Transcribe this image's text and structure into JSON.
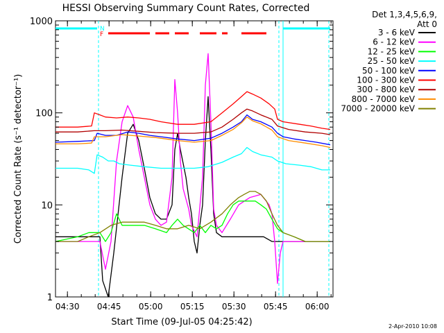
{
  "chart_data": {
    "type": "line",
    "title": "HESSI Observing Summary Count Rates, Corrected",
    "xlabel": "Start Time (09-Jul-05 04:25:42)",
    "ylabel": "Corrected Count Rate (s⁻¹ detector⁻¹)",
    "yscale": "log",
    "ylim": [
      1,
      1000
    ],
    "xlim_minutes": [
      0,
      100
    ],
    "x_ticks": [
      {
        "label": "04:30",
        "minute": 4.3
      },
      {
        "label": "04:45",
        "minute": 19.3
      },
      {
        "label": "05:00",
        "minute": 34.3
      },
      {
        "label": "05:15",
        "minute": 49.3
      },
      {
        "label": "05:30",
        "minute": 64.3
      },
      {
        "label": "05:45",
        "minute": 79.3
      },
      {
        "label": "06:00",
        "minute": 94.3
      }
    ],
    "y_ticks": [
      {
        "label": "1",
        "value": 1
      },
      {
        "label": "10",
        "value": 10
      },
      {
        "label": "100",
        "value": 100
      },
      {
        "label": "1000",
        "value": 1000
      }
    ],
    "legend_title": [
      "Det 1,3,4,5,6,9,",
      "Att 0"
    ],
    "legend_position": "right",
    "series": [
      {
        "name": "3 - 6 keV",
        "color": "#000000",
        "points": [
          [
            0,
            4.5
          ],
          [
            16,
            4.5
          ],
          [
            17,
            1.5
          ],
          [
            19,
            1
          ],
          [
            21,
            3
          ],
          [
            24,
            20
          ],
          [
            26,
            60
          ],
          [
            28,
            75
          ],
          [
            30,
            50
          ],
          [
            32,
            25
          ],
          [
            34,
            12
          ],
          [
            36,
            8
          ],
          [
            38,
            7
          ],
          [
            40,
            7
          ],
          [
            42,
            10
          ],
          [
            43,
            40
          ],
          [
            44,
            60
          ],
          [
            45,
            40
          ],
          [
            47,
            20
          ],
          [
            48,
            12
          ],
          [
            49,
            8
          ],
          [
            50,
            4
          ],
          [
            51,
            3
          ],
          [
            52,
            6
          ],
          [
            53,
            10
          ],
          [
            54,
            50
          ],
          [
            55,
            150
          ],
          [
            56,
            40
          ],
          [
            57,
            8
          ],
          [
            58,
            5
          ],
          [
            60,
            4.5
          ],
          [
            65,
            4.5
          ],
          [
            70,
            4.5
          ],
          [
            75,
            4.5
          ],
          [
            78,
            4
          ],
          [
            80,
            4
          ],
          [
            82,
            4
          ],
          [
            90,
            4
          ],
          [
            99,
            4
          ]
        ]
      },
      {
        "name": "6 - 12 keV",
        "color": "#ff00ff",
        "points": [
          [
            0,
            4
          ],
          [
            16,
            4
          ],
          [
            18,
            2
          ],
          [
            20,
            4
          ],
          [
            22,
            30
          ],
          [
            24,
            80
          ],
          [
            26,
            120
          ],
          [
            28,
            90
          ],
          [
            30,
            40
          ],
          [
            32,
            20
          ],
          [
            34,
            10
          ],
          [
            36,
            7
          ],
          [
            38,
            6
          ],
          [
            40,
            6.5
          ],
          [
            42,
            20
          ],
          [
            43,
            230
          ],
          [
            44,
            100
          ],
          [
            45,
            30
          ],
          [
            46,
            15
          ],
          [
            48,
            9
          ],
          [
            49,
            6
          ],
          [
            51,
            4.5
          ],
          [
            53,
            20
          ],
          [
            54,
            200
          ],
          [
            55,
            440
          ],
          [
            56,
            80
          ],
          [
            57,
            9
          ],
          [
            58,
            6
          ],
          [
            60,
            5
          ],
          [
            63,
            7
          ],
          [
            66,
            10
          ],
          [
            70,
            12
          ],
          [
            74,
            13
          ],
          [
            77,
            10
          ],
          [
            78,
            8
          ],
          [
            79,
            4
          ],
          [
            80,
            1.4
          ],
          [
            81,
            3
          ],
          [
            82,
            4
          ],
          [
            90,
            4
          ],
          [
            99,
            4
          ]
        ]
      },
      {
        "name": "12 - 25 keV",
        "color": "#00ff00",
        "points": [
          [
            0,
            4
          ],
          [
            8,
            4.5
          ],
          [
            12,
            5
          ],
          [
            16,
            5
          ],
          [
            18,
            4
          ],
          [
            20,
            5
          ],
          [
            22,
            8
          ],
          [
            24,
            6
          ],
          [
            28,
            6
          ],
          [
            32,
            6
          ],
          [
            36,
            5.5
          ],
          [
            40,
            5
          ],
          [
            42,
            6
          ],
          [
            44,
            7
          ],
          [
            46,
            6
          ],
          [
            50,
            5
          ],
          [
            52,
            6
          ],
          [
            54,
            5
          ],
          [
            56,
            6
          ],
          [
            58,
            5.5
          ],
          [
            60,
            6
          ],
          [
            62,
            8
          ],
          [
            64,
            10
          ],
          [
            66,
            11
          ],
          [
            68,
            11
          ],
          [
            70,
            11
          ],
          [
            72,
            11
          ],
          [
            74,
            10
          ],
          [
            76,
            9
          ],
          [
            78,
            7
          ],
          [
            80,
            5.5
          ],
          [
            82,
            5
          ],
          [
            86,
            4.5
          ],
          [
            90,
            4
          ],
          [
            95,
            4
          ],
          [
            99,
            4
          ]
        ]
      },
      {
        "name": "25 - 50 keV",
        "color": "#00ffff",
        "points": [
          [
            0,
            25
          ],
          [
            8,
            25
          ],
          [
            12,
            24
          ],
          [
            14,
            22
          ],
          [
            15,
            35
          ],
          [
            17,
            33
          ],
          [
            19,
            30
          ],
          [
            21,
            30
          ],
          [
            23,
            28
          ],
          [
            27,
            27
          ],
          [
            32,
            26
          ],
          [
            38,
            25
          ],
          [
            44,
            25
          ],
          [
            50,
            25
          ],
          [
            55,
            26
          ],
          [
            60,
            29
          ],
          [
            64,
            33
          ],
          [
            67,
            36
          ],
          [
            69,
            42
          ],
          [
            71,
            38
          ],
          [
            74,
            35
          ],
          [
            78,
            33
          ],
          [
            80,
            30
          ],
          [
            83,
            28
          ],
          [
            88,
            27
          ],
          [
            92,
            26
          ],
          [
            96,
            24
          ],
          [
            99,
            24
          ]
        ]
      },
      {
        "name": "50 - 100 keV",
        "color": "#0000ff",
        "points": [
          [
            0,
            48
          ],
          [
            8,
            49
          ],
          [
            14,
            50
          ],
          [
            15,
            60
          ],
          [
            18,
            57
          ],
          [
            22,
            57
          ],
          [
            26,
            62
          ],
          [
            30,
            60
          ],
          [
            34,
            57
          ],
          [
            38,
            55
          ],
          [
            44,
            52
          ],
          [
            50,
            50
          ],
          [
            56,
            53
          ],
          [
            60,
            60
          ],
          [
            64,
            70
          ],
          [
            67,
            80
          ],
          [
            69,
            95
          ],
          [
            71,
            85
          ],
          [
            74,
            80
          ],
          [
            78,
            70
          ],
          [
            80,
            60
          ],
          [
            82,
            55
          ],
          [
            86,
            52
          ],
          [
            90,
            50
          ],
          [
            94,
            48
          ],
          [
            99,
            45
          ]
        ]
      },
      {
        "name": "100 - 300 keV",
        "color": "#ff0000",
        "points": [
          [
            0,
            70
          ],
          [
            8,
            70
          ],
          [
            13,
            72
          ],
          [
            14,
            100
          ],
          [
            16,
            95
          ],
          [
            18,
            90
          ],
          [
            22,
            88
          ],
          [
            26,
            90
          ],
          [
            30,
            88
          ],
          [
            34,
            85
          ],
          [
            38,
            80
          ],
          [
            44,
            75
          ],
          [
            50,
            75
          ],
          [
            56,
            80
          ],
          [
            60,
            100
          ],
          [
            64,
            125
          ],
          [
            67,
            150
          ],
          [
            69,
            170
          ],
          [
            71,
            160
          ],
          [
            74,
            145
          ],
          [
            77,
            125
          ],
          [
            79,
            110
          ],
          [
            80,
            85
          ],
          [
            82,
            80
          ],
          [
            88,
            75
          ],
          [
            92,
            72
          ],
          [
            96,
            68
          ],
          [
            99,
            66
          ]
        ]
      },
      {
        "name": "300 - 800 keV",
        "color": "#b00000",
        "points": [
          [
            0,
            62
          ],
          [
            8,
            62
          ],
          [
            14,
            64
          ],
          [
            18,
            64
          ],
          [
            24,
            65
          ],
          [
            30,
            63
          ],
          [
            36,
            61
          ],
          [
            44,
            60
          ],
          [
            50,
            60
          ],
          [
            56,
            62
          ],
          [
            60,
            70
          ],
          [
            64,
            85
          ],
          [
            67,
            100
          ],
          [
            69,
            110
          ],
          [
            71,
            105
          ],
          [
            74,
            95
          ],
          [
            78,
            85
          ],
          [
            80,
            72
          ],
          [
            84,
            66
          ],
          [
            90,
            62
          ],
          [
            96,
            60
          ],
          [
            99,
            58
          ]
        ]
      },
      {
        "name": "800 - 7000 keV",
        "color": "#ff8c00",
        "points": [
          [
            0,
            46
          ],
          [
            8,
            46
          ],
          [
            13,
            47
          ],
          [
            14,
            55
          ],
          [
            18,
            55
          ],
          [
            24,
            58
          ],
          [
            30,
            56
          ],
          [
            36,
            54
          ],
          [
            44,
            50
          ],
          [
            50,
            48
          ],
          [
            56,
            50
          ],
          [
            60,
            57
          ],
          [
            64,
            66
          ],
          [
            67,
            78
          ],
          [
            69,
            90
          ],
          [
            71,
            82
          ],
          [
            74,
            76
          ],
          [
            78,
            65
          ],
          [
            80,
            55
          ],
          [
            84,
            50
          ],
          [
            90,
            47
          ],
          [
            96,
            44
          ],
          [
            99,
            42
          ]
        ]
      },
      {
        "name": "7000 - 20000 keV",
        "color": "#808000",
        "points": [
          [
            0,
            4
          ],
          [
            8,
            4
          ],
          [
            12,
            4.5
          ],
          [
            16,
            5
          ],
          [
            20,
            6
          ],
          [
            24,
            6.5
          ],
          [
            28,
            6.5
          ],
          [
            32,
            6.5
          ],
          [
            36,
            6
          ],
          [
            40,
            5.5
          ],
          [
            44,
            5.5
          ],
          [
            48,
            6
          ],
          [
            52,
            5.5
          ],
          [
            56,
            6.5
          ],
          [
            60,
            8
          ],
          [
            63,
            10
          ],
          [
            66,
            12
          ],
          [
            68,
            13
          ],
          [
            70,
            14
          ],
          [
            72,
            14
          ],
          [
            74,
            13
          ],
          [
            76,
            11
          ],
          [
            78,
            8
          ],
          [
            80,
            6
          ],
          [
            82,
            5
          ],
          [
            86,
            4.5
          ],
          [
            90,
            4
          ],
          [
            95,
            4
          ],
          [
            99,
            4
          ]
        ]
      }
    ],
    "annotations": [
      {
        "text": "N",
        "color": "#00ffff",
        "minute": 15.5
      },
      {
        "text": "F",
        "color": "#ff0000",
        "minute": 15.5
      }
    ],
    "attenuator_bar": {
      "color": "#00ffff",
      "ranges_minutes": [
        [
          0,
          15
        ],
        [
          82,
          99
        ]
      ]
    },
    "flare_bar": {
      "color": "#ff0000",
      "ranges_minutes": [
        [
          19,
          34
        ],
        [
          36,
          41
        ],
        [
          43,
          48
        ],
        [
          52,
          58
        ],
        [
          60,
          62
        ],
        [
          67,
          76
        ]
      ]
    },
    "night_markers": {
      "color": "#00ffff",
      "minutes": [
        15.5,
        80.5,
        98.5
      ]
    },
    "footer_date": "2-Apr-2010 10:08"
  }
}
